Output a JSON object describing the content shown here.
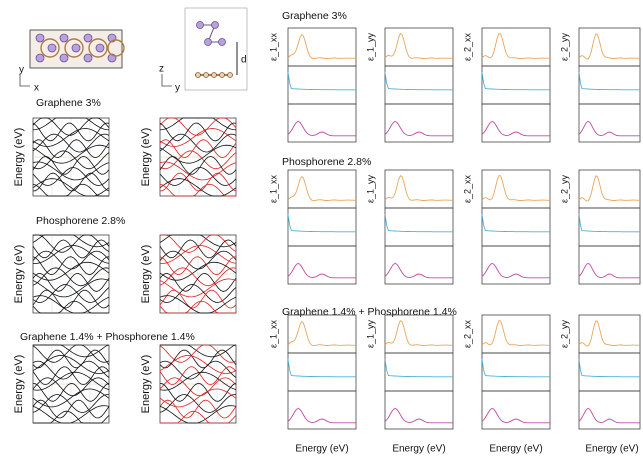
{
  "structure": {
    "top_axes": [
      "y",
      "x"
    ],
    "side_axes": [
      "z",
      "y"
    ],
    "distance": "d"
  },
  "bands": {
    "rows": [
      {
        "title": "Graphene 3%"
      },
      {
        "title": "Phosphorene 2.8%"
      },
      {
        "title": "Graphene 1.4% + Phosphorene 1.4%"
      }
    ],
    "y_label": "Energy (eV)"
  },
  "optics": {
    "rows": [
      {
        "title": "Graphene 3%"
      },
      {
        "title": "Phosphorene 2.8%"
      },
      {
        "title": "Graphene 1.4% + Phosphorene 1.4%"
      }
    ],
    "columns": [
      "ε_1_xx",
      "ε_1_yy",
      "ε_2_xx",
      "ε_2_yy"
    ],
    "x_label": "Energy (eV)"
  }
}
